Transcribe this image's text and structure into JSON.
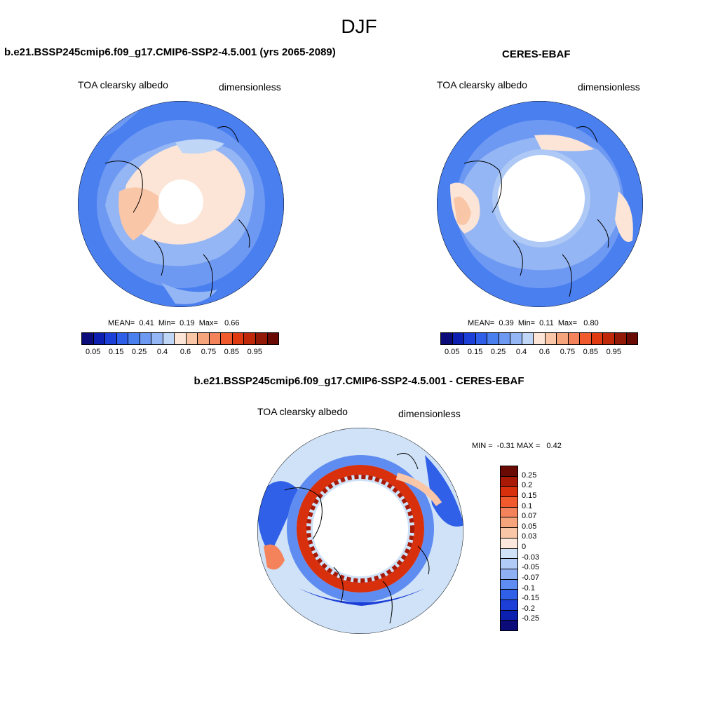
{
  "season": "DJF",
  "panels": [
    {
      "title": "b.e21.BSSP245cmip6.f09_g17.CMIP6-SSP2-4.5.001 (yrs 2065-2089)",
      "variable": "TOA clearsky albedo",
      "units": "dimensionless",
      "stats": {
        "mean_label": "MEAN=",
        "mean": "0.41",
        "min_label": "Min=",
        "min": "0.19",
        "max_label": "Max=",
        "max": "0.66"
      }
    },
    {
      "title": "CERES-EBAF",
      "variable": "TOA clearsky albedo",
      "units": "dimensionless",
      "stats": {
        "mean_label": "MEAN=",
        "mean": "0.39",
        "min_label": "Min=",
        "min": "0.11",
        "max_label": "Max=",
        "max": "0.80"
      }
    },
    {
      "title": "b.e21.BSSP245cmip6.f09_g17.CMIP6-SSP2-4.5.001 - CERES-EBAF",
      "variable": "TOA clearsky albedo",
      "units": "dimensionless",
      "stats": {
        "min_label": "MIN =",
        "min": "-0.31",
        "max_label": "MAX =",
        "max": "0.42"
      }
    }
  ],
  "colorbar_abs": {
    "colors": [
      "#0b0b7a",
      "#0c1fb0",
      "#1c3fd8",
      "#2f5fe8",
      "#4a7ff0",
      "#6e99f2",
      "#95b6f4",
      "#c0d6f6",
      "#fce5d6",
      "#f9c6a8",
      "#f6a47c",
      "#f4825a",
      "#f05a2c",
      "#e03a10",
      "#c0280a",
      "#921808",
      "#6a0a04"
    ],
    "ticks": [
      "0.05",
      "0.15",
      "0.25",
      "0.4",
      "0.6",
      "0.75",
      "0.85",
      "0.95"
    ]
  },
  "colorbar_diff": {
    "colors": [
      "#6a0a04",
      "#a81a06",
      "#d8300c",
      "#f05a2c",
      "#f4825a",
      "#f6a47c",
      "#f9c6a8",
      "#fce8dc",
      "#cfe2f8",
      "#b0ccf6",
      "#8fb0f4",
      "#5f8cf0",
      "#3060e8",
      "#1c3fd8",
      "#0c20b0",
      "#0b0b7a"
    ],
    "ticks": [
      "0.25",
      "0.2",
      "0.15",
      "0.1",
      "0.07",
      "0.05",
      "0.03",
      "0",
      "-0.03",
      "-0.05",
      "-0.07",
      "-0.1",
      "-0.15",
      "-0.2",
      "-0.25"
    ]
  }
}
